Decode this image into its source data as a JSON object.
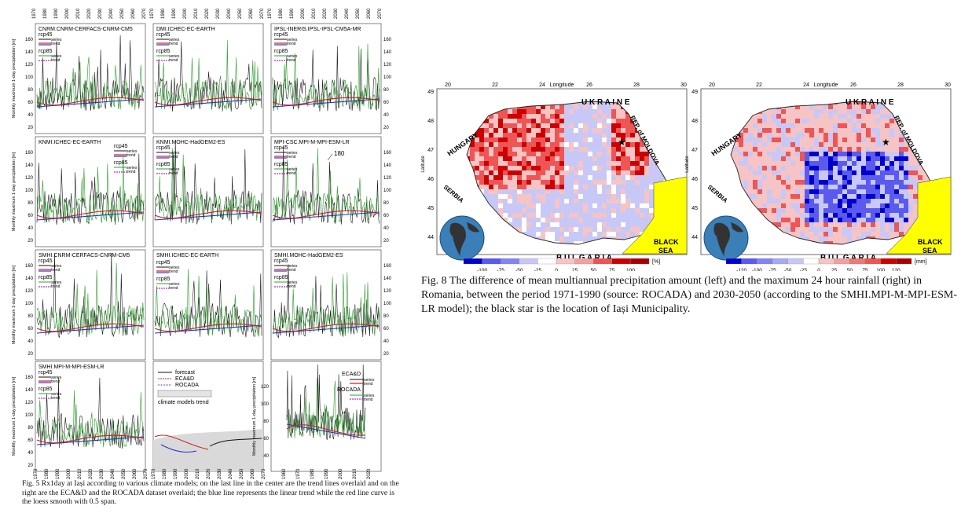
{
  "fig5": {
    "years_top": [
      "1970",
      "1980",
      "1990",
      "2000",
      "2010",
      "2020",
      "2030",
      "2040",
      "2050",
      "2060",
      "2070"
    ],
    "years_bottom": [
      "1970",
      "1980",
      "1990",
      "2000",
      "2010",
      "2020",
      "2030",
      "2040",
      "2050",
      "2060",
      "2070"
    ],
    "ylabel": "Monthly maximum 1-day precipitation [m]",
    "legend": {
      "rcp45": "rcp45",
      "rcp85": "rcp85",
      "series": "series",
      "trend": "trend",
      "ecad": "ECA&D",
      "rocada": "ROCADA"
    },
    "overlay_legend": {
      "forecast": "forecast",
      "ecad": "ECA&D",
      "rocada": "ROCADA",
      "models_trend": "climate models trend"
    },
    "annotation": "180",
    "panels": [
      {
        "title": "CNRM.CNRM-CERFACS-CNRM-CM5"
      },
      {
        "title": "DMI.ICHEC-EC-EARTH"
      },
      {
        "title": "IPSL-INERIS.IPSL-IPSL-CM5A-MR"
      },
      {
        "title": "KNMI.ICHEC-EC-EARTH"
      },
      {
        "title": "KNMI.MOHC-HadGEM2-ES"
      },
      {
        "title": "MPI-CSC.MPI-M-MPI-ESM-LR"
      },
      {
        "title": "SMHI.CNRM-CERFACS-CNRM-CM5"
      },
      {
        "title": "SMHI.ICHEC-EC-EARTH"
      },
      {
        "title": "SMHI.MOHC-HadGEM2-ES"
      },
      {
        "title": "SMHI.MPI-M-MPI-ESM-LR"
      }
    ],
    "yticks": [
      "20",
      "40",
      "60",
      "80",
      "100",
      "120",
      "140",
      "160"
    ],
    "last_years": [
      "1960",
      "1970",
      "1980",
      "1990",
      "2000",
      "2010",
      "2020"
    ],
    "last_yticks": [
      "40",
      "60",
      "80",
      "100",
      "120"
    ]
  },
  "caption5": "Fig. 5 Rx1day at Iași according to various climate models; on the last line in the center are the trend lines overlaid and on the right are the ECA&D and the ROCADA dataset overlaid; the blue line represents the linear trend while the red line curve is the loess smooth with 0.5 span.",
  "fig8": {
    "axis_title": "Longitude",
    "lat_label": "Latitude",
    "lon_ticks": [
      "20",
      "22",
      "24",
      "26",
      "28",
      "30"
    ],
    "lat_ticks": [
      "49",
      "48",
      "47",
      "46",
      "45",
      "44"
    ],
    "countries": {
      "ukraine": "U K R A I N E",
      "hungary": "HUNGARY",
      "moldova": "REP. of MOLDOVA",
      "serbia": "SERBIA",
      "bulgaria": "B U L G A R I A",
      "black_sea_1": "BLACK",
      "black_sea_2": "SEA"
    },
    "left_scale": {
      "ticks": [
        "-100",
        "-75",
        "-50",
        "-25",
        "0",
        "25",
        "50",
        "75",
        "100"
      ],
      "unit": "[%]"
    },
    "right_scale": {
      "ticks": [
        "-120",
        "-100",
        "-75",
        "-50",
        "-25",
        "0",
        "25",
        "50",
        "75",
        "100",
        "120"
      ],
      "unit": "[mm]"
    },
    "colors": {
      "strong_blue": "#0000cc",
      "blue": "#5a5aee",
      "light_blue": "#c8c8f6",
      "white": "#ffffff",
      "light_red": "#f6c4c4",
      "red": "#ee5555",
      "strong_red": "#cc0000",
      "sea": "#ffff00"
    }
  },
  "caption8": "Fig. 8 The difference of mean multiannual precipitation amount (left) and the maximum 24 hour rainfall (right) in Romania, between the period 1971-1990 (source: ROCADA) and 2030-2050 (according to the SMHI.MPI-M-MPI-ESM-LR model); the black star is the location of Iași Municipality."
}
